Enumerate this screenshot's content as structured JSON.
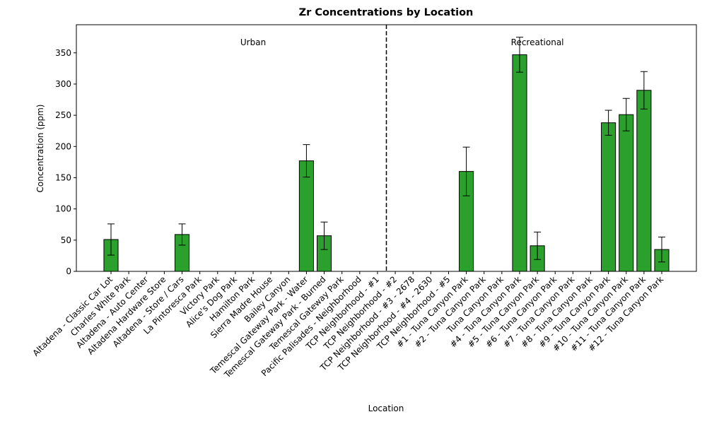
{
  "chart_data": {
    "type": "bar",
    "title": "Zr Concentrations by Location",
    "x_label": "Location",
    "y_label": "Concentration (ppm)",
    "categories": [
      "Altadena - Classic Car Lot",
      "Charles White Park",
      "Altadena - Auto Center",
      "Altadena Hardware Store",
      "Altadena - Store / Cars",
      "La Pintoresca Park",
      "Victory Park",
      "Alice's Dog Park",
      "Hamilton Park",
      "Sierra Madre House",
      "Bailey Canyon",
      "Temescal Gateway Park - Water",
      "Temescal Gateway Park - Burned",
      "Temescal Gateway Park",
      "Pacific Palisades - Neighborhood",
      "TCP Neighborhood - #1",
      "TCP Neighborhood - #2",
      "TCP Neighborhood - #3 - 2678",
      "TCP Neighborhood - #4 - 2630",
      "TCP Neighborhood - #5",
      "#1 - Tuna Canyon Park",
      "#2 - Tuna Canyon Park",
      "Tuna Canyon Park",
      "#4 - Tuna Canyon Park",
      "#5 - Tuna Canyon Park",
      "#6 - Tuna Canyon Park",
      "#7 - Tuna Canyon Park",
      "#8 - Tuna Canyon Park",
      "#9 - Tuna Canyon Park",
      "#10 - Tuna Canyon Park",
      "#11 - Tuna Canyon Park",
      "#12 - Tuna Canyon Park"
    ],
    "values": [
      51,
      null,
      null,
      null,
      59,
      null,
      null,
      null,
      null,
      null,
      null,
      177,
      57,
      null,
      null,
      null,
      null,
      null,
      null,
      null,
      160,
      null,
      null,
      347,
      41,
      null,
      null,
      null,
      238,
      251,
      290,
      35
    ],
    "errors": [
      25,
      null,
      null,
      null,
      17,
      null,
      null,
      null,
      null,
      null,
      null,
      26,
      22,
      null,
      null,
      null,
      null,
      null,
      null,
      null,
      39,
      null,
      null,
      28,
      22,
      null,
      null,
      null,
      20,
      26,
      30,
      20
    ],
    "color": "#2ca02c",
    "groups": [
      {
        "label": "Urban",
        "first": 0,
        "last": 15
      },
      {
        "label": "Recreational",
        "first": 16,
        "last": 31
      }
    ],
    "ylim": [
      0,
      395
    ],
    "yticks": [
      0,
      50,
      100,
      150,
      200,
      250,
      300,
      350
    ]
  }
}
